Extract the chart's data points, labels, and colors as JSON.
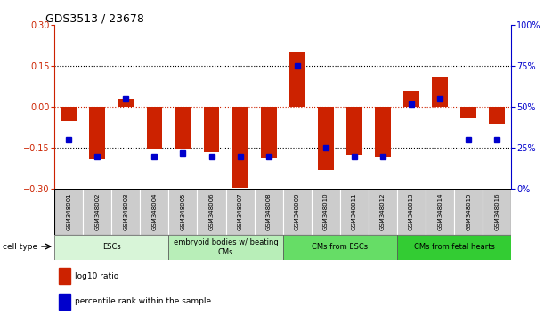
{
  "title": "GDS3513 / 23678",
  "samples": [
    "GSM348001",
    "GSM348002",
    "GSM348003",
    "GSM348004",
    "GSM348005",
    "GSM348006",
    "GSM348007",
    "GSM348008",
    "GSM348009",
    "GSM348010",
    "GSM348011",
    "GSM348012",
    "GSM348013",
    "GSM348014",
    "GSM348015",
    "GSM348016"
  ],
  "log10_ratio": [
    -0.05,
    -0.19,
    0.03,
    -0.155,
    -0.155,
    -0.165,
    -0.295,
    -0.185,
    0.2,
    -0.23,
    -0.175,
    -0.18,
    0.06,
    0.11,
    -0.04,
    -0.06
  ],
  "percentile_rank": [
    30,
    20,
    55,
    20,
    22,
    20,
    20,
    20,
    75,
    25,
    20,
    20,
    52,
    55,
    30,
    30
  ],
  "cell_type_groups": [
    {
      "label": "ESCs",
      "start": 0,
      "end": 4,
      "color": "#d8f5d8"
    },
    {
      "label": "embryoid bodies w/ beating\nCMs",
      "start": 4,
      "end": 8,
      "color": "#b8eeb8"
    },
    {
      "label": "CMs from ESCs",
      "start": 8,
      "end": 12,
      "color": "#66dd66"
    },
    {
      "label": "CMs from fetal hearts",
      "start": 12,
      "end": 16,
      "color": "#33cc33"
    }
  ],
  "ylim_left": [
    -0.3,
    0.3
  ],
  "ylim_right": [
    0,
    100
  ],
  "yticks_left": [
    -0.3,
    -0.15,
    0,
    0.15,
    0.3
  ],
  "yticks_right": [
    0,
    25,
    50,
    75,
    100
  ],
  "ytick_labels_right": [
    "0%",
    "25%",
    "50%",
    "75%",
    "100%"
  ],
  "red_color": "#cc2200",
  "blue_color": "#0000cc",
  "bar_width": 0.55,
  "marker_size": 4
}
